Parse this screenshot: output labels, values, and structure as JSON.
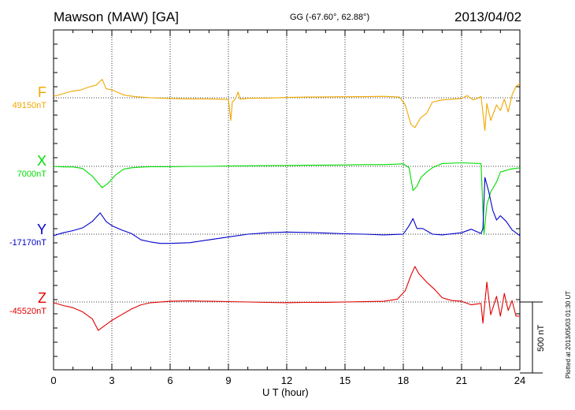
{
  "header": {
    "station": "Mawson (MAW)  [GA]",
    "coords": "GG (-67.60°,  62.88°)",
    "date": "2013/04/02"
  },
  "plotted_note": "Plotted at 2013/05/03 01:30 UT",
  "chart_data": {
    "type": "line",
    "title": "Mawson (MAW)  [GA]",
    "xlabel": "U T (hour)",
    "ylabel": "",
    "xlim": [
      0,
      24
    ],
    "x_ticks": [
      0,
      3,
      6,
      9,
      12,
      15,
      18,
      21,
      24
    ],
    "grid": true,
    "scale_bar": {
      "label": "500 nT",
      "value_nT": 500
    },
    "series": [
      {
        "name": "F",
        "baseline_label": "49150nT",
        "baseline_nT": 49150,
        "color": "#f0a800",
        "points": [
          [
            0,
            10
          ],
          [
            0.4,
            25
          ],
          [
            0.9,
            45
          ],
          [
            1.4,
            55
          ],
          [
            1.8,
            75
          ],
          [
            2.2,
            90
          ],
          [
            2.5,
            130
          ],
          [
            2.7,
            65
          ],
          [
            3.1,
            50
          ],
          [
            3.6,
            20
          ],
          [
            4.2,
            8
          ],
          [
            5,
            0
          ],
          [
            6,
            -5
          ],
          [
            7,
            -8
          ],
          [
            8,
            -8
          ],
          [
            9,
            -12
          ],
          [
            9.12,
            -160
          ],
          [
            9.2,
            -30
          ],
          [
            9.35,
            -10
          ],
          [
            9.5,
            40
          ],
          [
            9.6,
            -10
          ],
          [
            10,
            -4
          ],
          [
            11,
            -2
          ],
          [
            12,
            2
          ],
          [
            13,
            5
          ],
          [
            14,
            6
          ],
          [
            15,
            7
          ],
          [
            16,
            8
          ],
          [
            17,
            10
          ],
          [
            17.8,
            5
          ],
          [
            18.1,
            -50
          ],
          [
            18.4,
            -190
          ],
          [
            18.6,
            -210
          ],
          [
            18.9,
            -140
          ],
          [
            19.2,
            -110
          ],
          [
            19.5,
            -30
          ],
          [
            20,
            -15
          ],
          [
            21,
            -5
          ],
          [
            21.3,
            15
          ],
          [
            21.6,
            -15
          ],
          [
            21.8,
            -5
          ],
          [
            22,
            10
          ],
          [
            22.2,
            -230
          ],
          [
            22.3,
            -40
          ],
          [
            22.5,
            -160
          ],
          [
            22.8,
            -50
          ],
          [
            23,
            -90
          ],
          [
            23.2,
            -10
          ],
          [
            23.4,
            -100
          ],
          [
            23.6,
            20
          ],
          [
            23.8,
            80
          ],
          [
            24,
            100
          ]
        ]
      },
      {
        "name": "X",
        "baseline_label": "7000nT",
        "baseline_nT": 7000,
        "color": "#00dd00",
        "points": [
          [
            0,
            0
          ],
          [
            0.5,
            -4
          ],
          [
            1,
            -4
          ],
          [
            1.5,
            -15
          ],
          [
            2,
            -70
          ],
          [
            2.5,
            -150
          ],
          [
            2.8,
            -120
          ],
          [
            3.2,
            -60
          ],
          [
            3.6,
            -20
          ],
          [
            4,
            -10
          ],
          [
            4.5,
            -5
          ],
          [
            5,
            -2
          ],
          [
            6,
            -2
          ],
          [
            7,
            0
          ],
          [
            8,
            0
          ],
          [
            9,
            3
          ],
          [
            10,
            4
          ],
          [
            11,
            5
          ],
          [
            12,
            6
          ],
          [
            13,
            8
          ],
          [
            14,
            9
          ],
          [
            15,
            10
          ],
          [
            16,
            12
          ],
          [
            17,
            12
          ],
          [
            18,
            18
          ],
          [
            18.3,
            -10
          ],
          [
            18.5,
            -170
          ],
          [
            18.7,
            -140
          ],
          [
            18.9,
            -80
          ],
          [
            19.2,
            -40
          ],
          [
            19.5,
            -10
          ],
          [
            20,
            20
          ],
          [
            21,
            25
          ],
          [
            22,
            20
          ],
          [
            22.15,
            -480
          ],
          [
            22.3,
            -270
          ],
          [
            22.5,
            -180
          ],
          [
            22.8,
            -110
          ],
          [
            23,
            -40
          ],
          [
            23.5,
            -20
          ],
          [
            24,
            -10
          ]
        ]
      },
      {
        "name": "Y",
        "baseline_label": "-17170nT",
        "baseline_nT": -17170,
        "color": "#0000cc",
        "points": [
          [
            0,
            -10
          ],
          [
            0.5,
            10
          ],
          [
            1,
            25
          ],
          [
            1.5,
            45
          ],
          [
            2,
            90
          ],
          [
            2.4,
            150
          ],
          [
            2.7,
            90
          ],
          [
            3,
            60
          ],
          [
            3.5,
            30
          ],
          [
            4,
            5
          ],
          [
            4.5,
            -40
          ],
          [
            5,
            -55
          ],
          [
            5.5,
            -65
          ],
          [
            6,
            -65
          ],
          [
            7,
            -60
          ],
          [
            8,
            -40
          ],
          [
            9,
            -20
          ],
          [
            10,
            0
          ],
          [
            11,
            10
          ],
          [
            12,
            15
          ],
          [
            13,
            12
          ],
          [
            14,
            8
          ],
          [
            15,
            3
          ],
          [
            16,
            0
          ],
          [
            17,
            -5
          ],
          [
            18,
            0
          ],
          [
            18.3,
            60
          ],
          [
            18.5,
            110
          ],
          [
            18.7,
            40
          ],
          [
            19,
            40
          ],
          [
            19.5,
            0
          ],
          [
            20,
            -5
          ],
          [
            21,
            10
          ],
          [
            21.5,
            35
          ],
          [
            22,
            5
          ],
          [
            22.1,
            40
          ],
          [
            22.2,
            400
          ],
          [
            22.4,
            300
          ],
          [
            22.6,
            170
          ],
          [
            22.8,
            100
          ],
          [
            23,
            130
          ],
          [
            23.3,
            90
          ],
          [
            23.6,
            30
          ],
          [
            24,
            -10
          ]
        ]
      },
      {
        "name": "Z",
        "baseline_label": "-45520nT",
        "baseline_nT": -45520,
        "color": "#e00000",
        "points": [
          [
            0,
            -5
          ],
          [
            0.5,
            -25
          ],
          [
            1,
            -40
          ],
          [
            1.5,
            -70
          ],
          [
            2,
            -120
          ],
          [
            2.3,
            -200
          ],
          [
            2.6,
            -170
          ],
          [
            3,
            -130
          ],
          [
            3.5,
            -90
          ],
          [
            4,
            -50
          ],
          [
            4.5,
            -20
          ],
          [
            5,
            -5
          ],
          [
            6,
            5
          ],
          [
            7,
            8
          ],
          [
            8,
            5
          ],
          [
            9,
            3
          ],
          [
            10,
            0
          ],
          [
            11,
            -3
          ],
          [
            12,
            -5
          ],
          [
            13,
            -3
          ],
          [
            14,
            -2
          ],
          [
            15,
            0
          ],
          [
            16,
            2
          ],
          [
            17,
            5
          ],
          [
            17.7,
            20
          ],
          [
            18.1,
            80
          ],
          [
            18.4,
            190
          ],
          [
            18.6,
            250
          ],
          [
            18.8,
            200
          ],
          [
            19.2,
            140
          ],
          [
            19.6,
            90
          ],
          [
            20,
            30
          ],
          [
            20.5,
            10
          ],
          [
            21,
            5
          ],
          [
            21.5,
            -20
          ],
          [
            22,
            -10
          ],
          [
            22.1,
            -150
          ],
          [
            22.3,
            140
          ],
          [
            22.5,
            -90
          ],
          [
            22.8,
            40
          ],
          [
            23,
            -100
          ],
          [
            23.2,
            60
          ],
          [
            23.4,
            -60
          ],
          [
            23.6,
            10
          ],
          [
            23.8,
            -100
          ],
          [
            24,
            -100
          ]
        ]
      }
    ]
  }
}
